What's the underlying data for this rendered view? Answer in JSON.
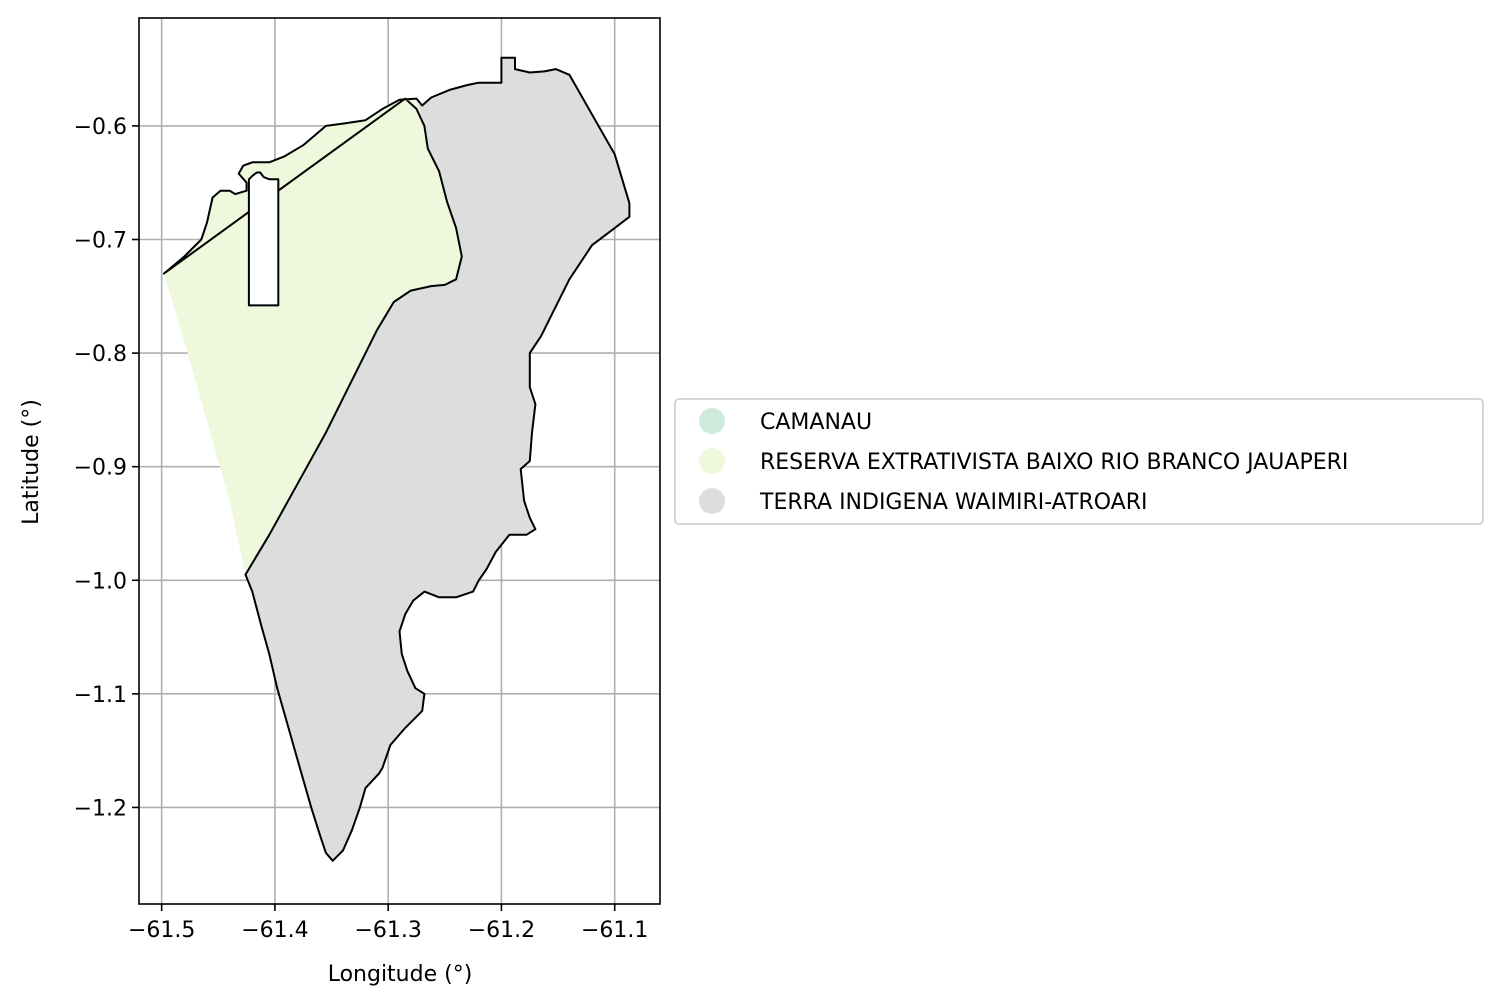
{
  "chart_data": {
    "type": "choropleth-map",
    "xlabel": "Longitude (°)",
    "ylabel": "Latitude (°)",
    "xlim": [
      -61.52,
      -61.06
    ],
    "ylim": [
      -1.285,
      -0.505
    ],
    "grid": true,
    "x_ticks": [
      {
        "value": -61.5,
        "label": "−61.5"
      },
      {
        "value": -61.4,
        "label": "−61.4"
      },
      {
        "value": -61.3,
        "label": "−61.3"
      },
      {
        "value": -61.2,
        "label": "−61.2"
      },
      {
        "value": -61.1,
        "label": "−61.1"
      }
    ],
    "y_ticks": [
      {
        "value": -0.6,
        "label": "−0.6"
      },
      {
        "value": -0.7,
        "label": "−0.7"
      },
      {
        "value": -0.8,
        "label": "−0.8"
      },
      {
        "value": -0.9,
        "label": "−0.9"
      },
      {
        "value": -1.0,
        "label": "−1.0"
      },
      {
        "value": -1.1,
        "label": "−1.1"
      },
      {
        "value": -1.2,
        "label": "−1.2"
      }
    ],
    "legend_position": "right",
    "categories": [
      {
        "name": "CAMANAU",
        "color": "#cfebdc"
      },
      {
        "name": "RESERVA EXTRATIVISTA BAIXO RIO BRANCO JAUAPERI",
        "color": "#eef8dd"
      },
      {
        "name": "TERRA INDIGENA WAIMIRI-ATROARI",
        "color": "#dddddd"
      }
    ],
    "outline_color": "#000000",
    "regions": [
      {
        "category": "TERRA INDIGENA WAIMIRI-ATROARI",
        "coords": [
          [
            -61.498,
            -0.73
          ],
          [
            -61.48,
            -0.715
          ],
          [
            -61.465,
            -0.7
          ],
          [
            -61.46,
            -0.685
          ],
          [
            -61.455,
            -0.663
          ],
          [
            -61.448,
            -0.657
          ],
          [
            -61.44,
            -0.657
          ],
          [
            -61.435,
            -0.66
          ],
          [
            -61.425,
            -0.657
          ],
          [
            -61.425,
            -0.65
          ],
          [
            -61.432,
            -0.642
          ],
          [
            -61.428,
            -0.635
          ],
          [
            -61.42,
            -0.632
          ],
          [
            -61.405,
            -0.632
          ],
          [
            -61.392,
            -0.627
          ],
          [
            -61.375,
            -0.617
          ],
          [
            -61.355,
            -0.6
          ],
          [
            -61.34,
            -0.598
          ],
          [
            -61.32,
            -0.595
          ],
          [
            -61.305,
            -0.585
          ],
          [
            -61.29,
            -0.577
          ],
          [
            -61.275,
            -0.576
          ],
          [
            -61.27,
            -0.582
          ],
          [
            -61.262,
            -0.575
          ],
          [
            -61.245,
            -0.568
          ],
          [
            -61.23,
            -0.564
          ],
          [
            -61.22,
            -0.562
          ],
          [
            -61.205,
            -0.562
          ],
          [
            -61.2,
            -0.562
          ],
          [
            -61.2,
            -0.54
          ],
          [
            -61.188,
            -0.54
          ],
          [
            -61.188,
            -0.55
          ],
          [
            -61.175,
            -0.553
          ],
          [
            -61.162,
            -0.552
          ],
          [
            -61.152,
            -0.55
          ],
          [
            -61.14,
            -0.555
          ],
          [
            -61.1,
            -0.625
          ],
          [
            -61.087,
            -0.668
          ],
          [
            -61.087,
            -0.68
          ],
          [
            -61.1,
            -0.69
          ],
          [
            -61.12,
            -0.705
          ],
          [
            -61.14,
            -0.735
          ],
          [
            -61.155,
            -0.765
          ],
          [
            -61.165,
            -0.785
          ],
          [
            -61.175,
            -0.8
          ],
          [
            -61.175,
            -0.83
          ],
          [
            -61.17,
            -0.845
          ],
          [
            -61.173,
            -0.87
          ],
          [
            -61.175,
            -0.895
          ],
          [
            -61.183,
            -0.902
          ],
          [
            -61.18,
            -0.93
          ],
          [
            -61.175,
            -0.945
          ],
          [
            -61.17,
            -0.955
          ],
          [
            -61.178,
            -0.96
          ],
          [
            -61.193,
            -0.96
          ],
          [
            -61.205,
            -0.975
          ],
          [
            -61.213,
            -0.99
          ],
          [
            -61.22,
            -1.0
          ],
          [
            -61.225,
            -1.01
          ],
          [
            -61.24,
            -1.015
          ],
          [
            -61.255,
            -1.015
          ],
          [
            -61.268,
            -1.01
          ],
          [
            -61.278,
            -1.018
          ],
          [
            -61.285,
            -1.03
          ],
          [
            -61.29,
            -1.045
          ],
          [
            -61.288,
            -1.065
          ],
          [
            -61.283,
            -1.08
          ],
          [
            -61.276,
            -1.095
          ],
          [
            -61.268,
            -1.1
          ],
          [
            -61.27,
            -1.115
          ],
          [
            -61.285,
            -1.13
          ],
          [
            -61.298,
            -1.145
          ],
          [
            -61.305,
            -1.165
          ],
          [
            -61.308,
            -1.17
          ],
          [
            -61.32,
            -1.183
          ],
          [
            -61.325,
            -1.2
          ],
          [
            -61.332,
            -1.22
          ],
          [
            -61.34,
            -1.238
          ],
          [
            -61.349,
            -1.247
          ],
          [
            -61.355,
            -1.24
          ],
          [
            -61.36,
            -1.225
          ],
          [
            -61.368,
            -1.2
          ],
          [
            -61.378,
            -1.165
          ],
          [
            -61.388,
            -1.13
          ],
          [
            -61.398,
            -1.095
          ],
          [
            -61.405,
            -1.065
          ],
          [
            -61.412,
            -1.04
          ],
          [
            -61.42,
            -1.01
          ],
          [
            -61.426,
            -0.995
          ],
          [
            -61.405,
            -0.96
          ],
          [
            -61.38,
            -0.915
          ],
          [
            -61.355,
            -0.87
          ],
          [
            -61.33,
            -0.82
          ],
          [
            -61.31,
            -0.78
          ],
          [
            -61.295,
            -0.755
          ],
          [
            -61.28,
            -0.745
          ],
          [
            -61.262,
            -0.741
          ],
          [
            -61.25,
            -0.74
          ],
          [
            -61.24,
            -0.735
          ],
          [
            -61.235,
            -0.715
          ],
          [
            -61.24,
            -0.69
          ],
          [
            -61.248,
            -0.667
          ],
          [
            -61.255,
            -0.64
          ],
          [
            -61.265,
            -0.62
          ],
          [
            -61.268,
            -0.6
          ],
          [
            -61.275,
            -0.585
          ],
          [
            -61.285,
            -0.576
          ]
        ]
      },
      {
        "category": "RESERVA EXTRATIVISTA BAIXO RIO BRANCO JAUAPERI",
        "coords": [
          [
            -61.498,
            -0.73
          ],
          [
            -61.48,
            -0.715
          ],
          [
            -61.465,
            -0.7
          ],
          [
            -61.46,
            -0.685
          ],
          [
            -61.455,
            -0.663
          ],
          [
            -61.448,
            -0.657
          ],
          [
            -61.44,
            -0.657
          ],
          [
            -61.435,
            -0.66
          ],
          [
            -61.425,
            -0.657
          ],
          [
            -61.425,
            -0.65
          ],
          [
            -61.432,
            -0.642
          ],
          [
            -61.428,
            -0.635
          ],
          [
            -61.42,
            -0.632
          ],
          [
            -61.405,
            -0.632
          ],
          [
            -61.392,
            -0.627
          ],
          [
            -61.375,
            -0.617
          ],
          [
            -61.355,
            -0.6
          ],
          [
            -61.34,
            -0.598
          ],
          [
            -61.32,
            -0.595
          ],
          [
            -61.305,
            -0.585
          ],
          [
            -61.29,
            -0.577
          ],
          [
            -61.275,
            -0.576
          ],
          [
            -61.268,
            -0.6
          ],
          [
            -61.265,
            -0.62
          ],
          [
            -61.255,
            -0.64
          ],
          [
            -61.248,
            -0.667
          ],
          [
            -61.24,
            -0.69
          ],
          [
            -61.235,
            -0.715
          ],
          [
            -61.24,
            -0.735
          ],
          [
            -61.25,
            -0.74
          ],
          [
            -61.262,
            -0.741
          ],
          [
            -61.28,
            -0.745
          ],
          [
            -61.295,
            -0.755
          ],
          [
            -61.31,
            -0.78
          ],
          [
            -61.33,
            -0.82
          ],
          [
            -61.355,
            -0.87
          ],
          [
            -61.38,
            -0.915
          ],
          [
            -61.405,
            -0.96
          ],
          [
            -61.426,
            -0.995
          ],
          [
            -61.44,
            -0.93
          ],
          [
            -61.46,
            -0.86
          ],
          [
            -61.48,
            -0.79
          ]
        ]
      }
    ],
    "holes": [
      {
        "coords": [
          [
            -61.423,
            -0.647
          ],
          [
            -61.42,
            -0.644
          ],
          [
            -61.416,
            -0.641
          ],
          [
            -61.413,
            -0.641
          ],
          [
            -61.41,
            -0.645
          ],
          [
            -61.405,
            -0.647
          ],
          [
            -61.397,
            -0.647
          ],
          [
            -61.397,
            -0.758
          ],
          [
            -61.423,
            -0.758
          ]
        ]
      }
    ]
  }
}
